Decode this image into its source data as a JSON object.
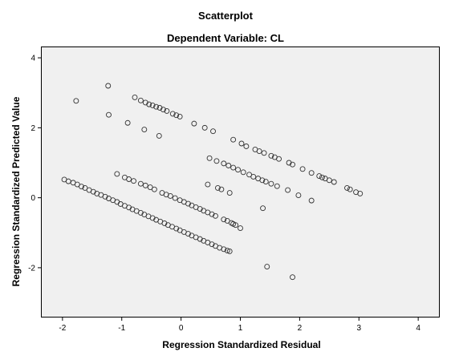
{
  "chart_data": {
    "type": "scatter",
    "title": "Scatterplot",
    "subtitle": "Dependent Variable: CL",
    "xlabel": "Regression Standardized Residual",
    "ylabel": "Regression Standardized Predicted Value",
    "xlim": [
      -2.35,
      4.35
    ],
    "ylim": [
      -3.4,
      4.3
    ],
    "xticks": [
      -2,
      -1,
      0,
      1,
      2,
      3,
      4
    ],
    "yticks": [
      -2,
      0,
      2,
      4
    ],
    "grid": false,
    "marker": "open-circle",
    "background": "#f0f0f0",
    "points": [
      [
        -1.77,
        2.77
      ],
      [
        -1.23,
        3.2
      ],
      [
        -1.22,
        2.37
      ],
      [
        -0.9,
        2.14
      ],
      [
        -0.62,
        1.95
      ],
      [
        -0.37,
        1.77
      ],
      [
        -0.78,
        2.87
      ],
      [
        -0.68,
        2.78
      ],
      [
        -0.6,
        2.72
      ],
      [
        -0.54,
        2.67
      ],
      [
        -0.48,
        2.64
      ],
      [
        -0.42,
        2.6
      ],
      [
        -0.36,
        2.57
      ],
      [
        -0.3,
        2.52
      ],
      [
        -0.24,
        2.48
      ],
      [
        -0.14,
        2.4
      ],
      [
        -0.08,
        2.36
      ],
      [
        -0.02,
        2.32
      ],
      [
        0.22,
        2.12
      ],
      [
        0.4,
        2.0
      ],
      [
        0.54,
        1.9
      ],
      [
        0.88,
        1.66
      ],
      [
        1.02,
        1.55
      ],
      [
        1.1,
        1.47
      ],
      [
        1.25,
        1.38
      ],
      [
        1.32,
        1.33
      ],
      [
        1.4,
        1.28
      ],
      [
        1.52,
        1.2
      ],
      [
        1.58,
        1.16
      ],
      [
        1.65,
        1.11
      ],
      [
        1.82,
        1.0
      ],
      [
        1.88,
        0.95
      ],
      [
        2.05,
        0.82
      ],
      [
        2.2,
        0.71
      ],
      [
        2.33,
        0.62
      ],
      [
        2.38,
        0.58
      ],
      [
        2.43,
        0.55
      ],
      [
        2.5,
        0.5
      ],
      [
        2.58,
        0.45
      ],
      [
        2.8,
        0.28
      ],
      [
        2.85,
        0.24
      ],
      [
        2.95,
        0.16
      ],
      [
        3.02,
        0.12
      ],
      [
        0.48,
        1.13
      ],
      [
        0.6,
        1.05
      ],
      [
        0.72,
        0.98
      ],
      [
        0.8,
        0.92
      ],
      [
        0.88,
        0.86
      ],
      [
        0.96,
        0.8
      ],
      [
        1.05,
        0.73
      ],
      [
        1.15,
        0.66
      ],
      [
        1.22,
        0.6
      ],
      [
        1.3,
        0.55
      ],
      [
        1.37,
        0.5
      ],
      [
        1.43,
        0.46
      ],
      [
        1.52,
        0.4
      ],
      [
        1.62,
        0.33
      ],
      [
        1.8,
        0.22
      ],
      [
        1.98,
        0.07
      ],
      [
        2.2,
        -0.08
      ],
      [
        0.45,
        0.38
      ],
      [
        0.62,
        0.28
      ],
      [
        0.68,
        0.24
      ],
      [
        0.82,
        0.14
      ],
      [
        1.38,
        -0.3
      ],
      [
        1.45,
        -1.97
      ],
      [
        1.88,
        -2.27
      ],
      [
        -1.97,
        0.52
      ],
      [
        -1.9,
        0.47
      ],
      [
        -1.82,
        0.43
      ],
      [
        -1.75,
        0.38
      ],
      [
        -1.68,
        0.32
      ],
      [
        -1.62,
        0.28
      ],
      [
        -1.55,
        0.22
      ],
      [
        -1.48,
        0.17
      ],
      [
        -1.42,
        0.12
      ],
      [
        -1.35,
        0.08
      ],
      [
        -1.28,
        0.03
      ],
      [
        -1.22,
        -0.02
      ],
      [
        -1.15,
        -0.07
      ],
      [
        -1.08,
        -0.12
      ],
      [
        -1.02,
        -0.18
      ],
      [
        -0.95,
        -0.23
      ],
      [
        -0.88,
        -0.28
      ],
      [
        -0.82,
        -0.33
      ],
      [
        -0.75,
        -0.38
      ],
      [
        -0.68,
        -0.43
      ],
      [
        -0.62,
        -0.48
      ],
      [
        -0.55,
        -0.53
      ],
      [
        -0.48,
        -0.58
      ],
      [
        -0.42,
        -0.63
      ],
      [
        -0.35,
        -0.68
      ],
      [
        -0.28,
        -0.73
      ],
      [
        -0.22,
        -0.78
      ],
      [
        -0.15,
        -0.83
      ],
      [
        -0.08,
        -0.88
      ],
      [
        -0.02,
        -0.93
      ],
      [
        0.05,
        -0.98
      ],
      [
        0.12,
        -1.03
      ],
      [
        0.18,
        -1.08
      ],
      [
        0.25,
        -1.13
      ],
      [
        0.32,
        -1.18
      ],
      [
        0.38,
        -1.23
      ],
      [
        0.45,
        -1.28
      ],
      [
        0.52,
        -1.33
      ],
      [
        0.58,
        -1.38
      ],
      [
        0.65,
        -1.43
      ],
      [
        0.72,
        -1.47
      ],
      [
        0.78,
        -1.51
      ],
      [
        0.82,
        -1.53
      ],
      [
        -1.08,
        0.68
      ],
      [
        -0.95,
        0.58
      ],
      [
        -0.88,
        0.53
      ],
      [
        -0.8,
        0.48
      ],
      [
        -0.68,
        0.4
      ],
      [
        -0.6,
        0.35
      ],
      [
        -0.52,
        0.3
      ],
      [
        -0.45,
        0.24
      ],
      [
        -0.32,
        0.14
      ],
      [
        -0.25,
        0.09
      ],
      [
        -0.18,
        0.05
      ],
      [
        -0.1,
        -0.01
      ],
      [
        -0.02,
        -0.07
      ],
      [
        0.05,
        -0.12
      ],
      [
        0.12,
        -0.17
      ],
      [
        0.18,
        -0.22
      ],
      [
        0.25,
        -0.27
      ],
      [
        0.32,
        -0.32
      ],
      [
        0.38,
        -0.37
      ],
      [
        0.45,
        -0.42
      ],
      [
        0.52,
        -0.47
      ],
      [
        0.58,
        -0.52
      ],
      [
        0.72,
        -0.62
      ],
      [
        0.78,
        -0.66
      ],
      [
        0.85,
        -0.72
      ],
      [
        0.88,
        -0.75
      ],
      [
        0.92,
        -0.78
      ],
      [
        1.0,
        -0.87
      ]
    ]
  }
}
